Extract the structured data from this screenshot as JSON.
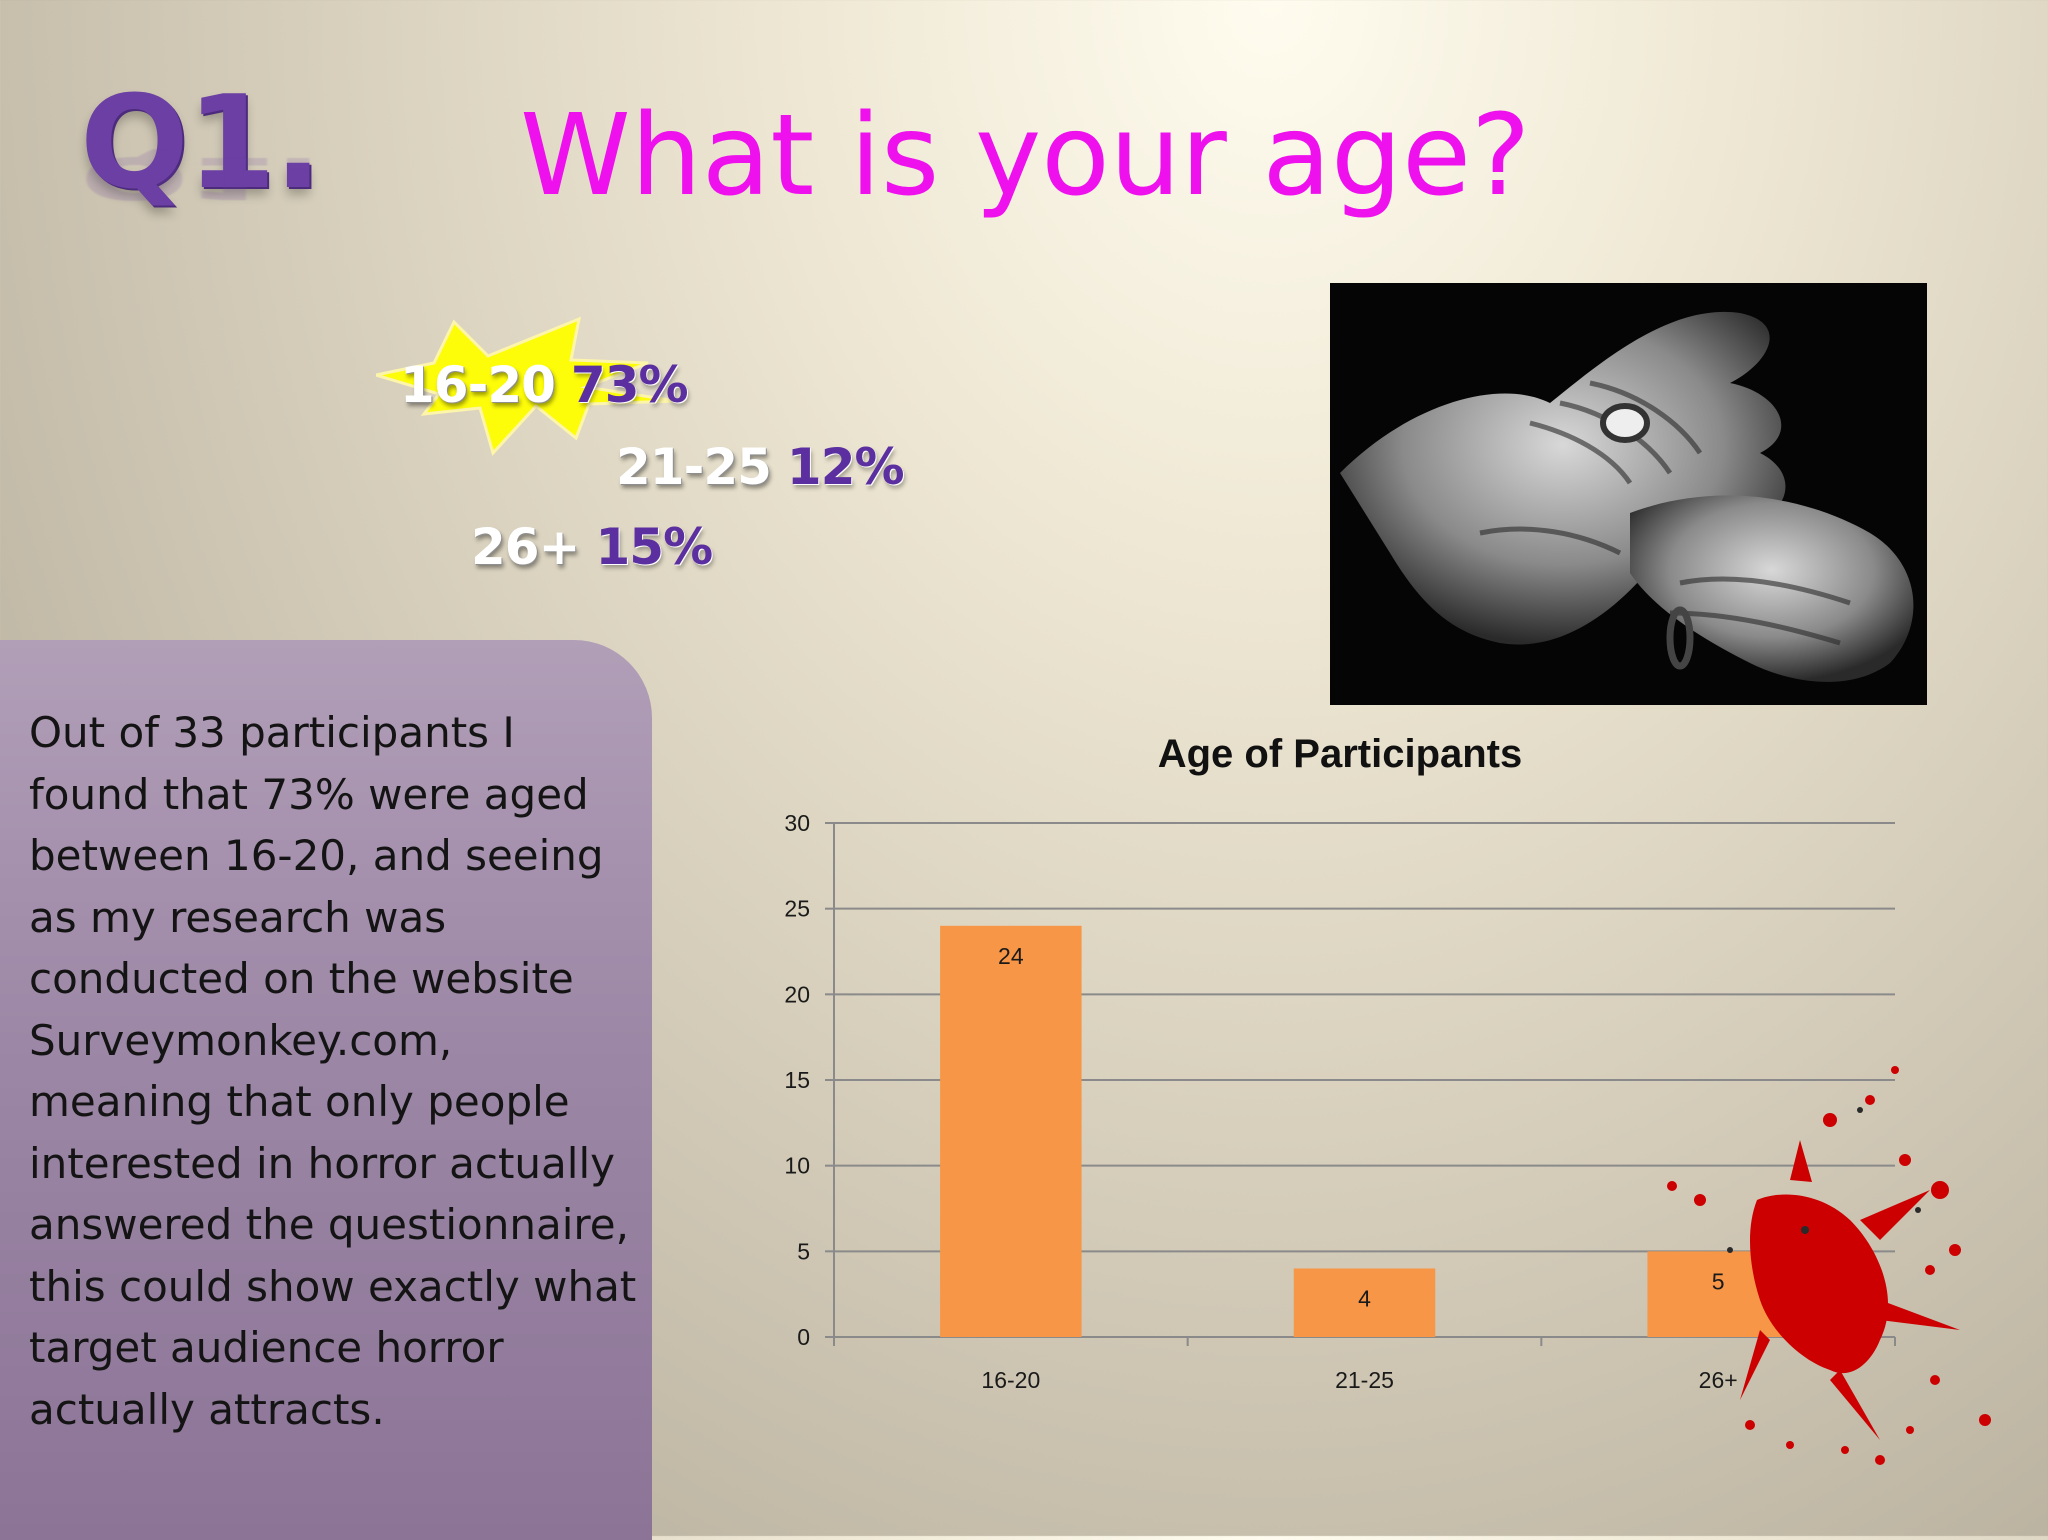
{
  "slide": {
    "q_label": "Q1.",
    "title": "What is your age?"
  },
  "stats": [
    {
      "range": "16-20",
      "percent": "73%",
      "highlighted": true
    },
    {
      "range": "21-25",
      "percent": "12%",
      "highlighted": false
    },
    {
      "range": "26+",
      "percent": "15%",
      "highlighted": false
    }
  ],
  "note": {
    "text": "Out of 33 participants I found that 73% were aged between 16-20, and seeing as my research was conducted on the website Surveymonkey.com, meaning that only people interested in horror actually answered the questionnaire, this could show exactly what target audience horror actually attracts."
  },
  "chart_data": {
    "type": "bar",
    "title": "Age of Participants",
    "categories": [
      "16-20",
      "21-25",
      "26+"
    ],
    "values": [
      24,
      4,
      5
    ],
    "data_labels": [
      "24",
      "4",
      "5"
    ],
    "ylim": [
      0,
      30
    ],
    "yticks": [
      0,
      5,
      10,
      15,
      20,
      25,
      30
    ],
    "xlabel": "",
    "ylabel": "",
    "grid": true,
    "legend": "none",
    "bar_color": "#f79646"
  },
  "colors": {
    "title": "#ee11ee",
    "q_label": "#6b3fa3",
    "percent": "#5b2fa0",
    "burst": "#ffff00",
    "blood": "#cc0000"
  }
}
